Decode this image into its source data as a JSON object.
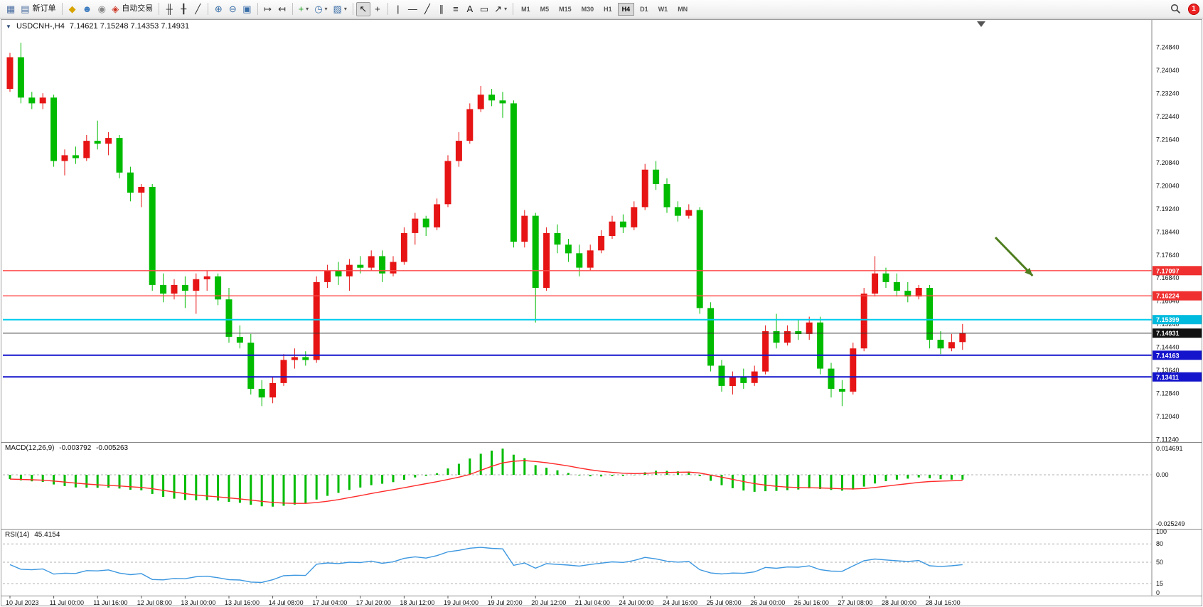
{
  "toolbar": {
    "groups": [
      [
        {
          "name": "new-chart-button",
          "glyph": "▦",
          "color": "#4a6da0"
        },
        {
          "name": "new-order-button",
          "glyph": "▤",
          "color": "#4a6da0",
          "label": "新订单"
        }
      ],
      [
        {
          "name": "profiles-button",
          "glyph": "◆",
          "color": "#d8a400"
        },
        {
          "name": "community-button",
          "glyph": "☻",
          "color": "#3a7abf"
        },
        {
          "name": "market-button",
          "glyph": "◉",
          "color": "#888888"
        },
        {
          "name": "autotrading-button",
          "glyph": "◈",
          "color": "#cc3322",
          "label": "自动交易"
        }
      ],
      [
        {
          "name": "bar-chart-button",
          "glyph": "╫",
          "color": "#333333"
        },
        {
          "name": "candle-chart-button",
          "glyph": "╂",
          "color": "#333333"
        },
        {
          "name": "line-chart-button",
          "glyph": "╱",
          "color": "#333333"
        }
      ],
      [
        {
          "name": "zoom-in-button",
          "glyph": "⊕",
          "color": "#3a6ea8"
        },
        {
          "name": "zoom-out-button",
          "glyph": "⊖",
          "color": "#3a6ea8"
        },
        {
          "name": "tile-windows-button",
          "glyph": "▣",
          "color": "#3a6ea8"
        }
      ],
      [
        {
          "name": "auto-scroll-button",
          "glyph": "↦",
          "color": "#333333"
        },
        {
          "name": "chart-shift-button",
          "glyph": "↤",
          "color": "#333333"
        }
      ],
      [
        {
          "name": "indicators-button",
          "glyph": "+",
          "color": "#1a9a1a",
          "caret": true
        },
        {
          "name": "periods-button",
          "glyph": "◷",
          "color": "#3a6ea8",
          "caret": true
        },
        {
          "name": "templates-button",
          "glyph": "▨",
          "color": "#3a6ea8",
          "caret": true
        }
      ],
      [
        {
          "name": "cursor-button",
          "glyph": "↖",
          "color": "#222222",
          "active": true
        },
        {
          "name": "crosshair-button",
          "glyph": "+",
          "color": "#222222"
        }
      ],
      [
        {
          "name": "vertical-line-tool-button",
          "glyph": "|",
          "color": "#222222"
        },
        {
          "name": "horizontal-line-tool-button",
          "glyph": "—",
          "color": "#222222"
        },
        {
          "name": "trendline-tool-button",
          "glyph": "╱",
          "color": "#222222"
        },
        {
          "name": "channel-tool-button",
          "glyph": "∥",
          "color": "#222222"
        },
        {
          "name": "fibonacci-tool-button",
          "glyph": "≡",
          "color": "#222222"
        },
        {
          "name": "text-tool-button",
          "glyph": "A",
          "color": "#222222"
        },
        {
          "name": "label-tool-button",
          "glyph": "▭",
          "color": "#222222"
        },
        {
          "name": "arrows-tool-button",
          "glyph": "↗",
          "color": "#222222",
          "caret": true
        }
      ]
    ],
    "timeframes": {
      "items": [
        "M1",
        "M5",
        "M15",
        "M30",
        "H1",
        "H4",
        "D1",
        "W1",
        "MN"
      ],
      "active": "H4"
    },
    "notification_count": "1"
  },
  "chart": {
    "symbol_title": "USDCNH-,H4",
    "ohlc_text": "7.14621 7.15248 7.14353 7.14931",
    "price_axis_labels": [
      "7.24840",
      "7.24040",
      "7.23240",
      "7.22440",
      "7.21640",
      "7.20840",
      "7.20040",
      "7.19240",
      "7.18440",
      "7.17640",
      "7.16840",
      "7.16040",
      "7.15240",
      "7.14440",
      "7.13640",
      "7.12840",
      "7.12040",
      "7.11240"
    ],
    "levels": [
      {
        "name": "resistance-line-1",
        "price": 7.17097,
        "label": "7.17097",
        "color": "#ff4a4a",
        "tag": "#f03030",
        "width": 1.4
      },
      {
        "name": "resistance-line-2",
        "price": 7.16224,
        "label": "7.16224",
        "color": "#ff4a4a",
        "tag": "#f03030",
        "width": 1.4
      },
      {
        "name": "support-line-cyan",
        "price": 7.15399,
        "label": "7.15399",
        "color": "#00ccee",
        "tag": "#00bbdd",
        "width": 2
      },
      {
        "name": "bid-price-line",
        "price": 7.14931,
        "label": "7.14931",
        "color": "#333333",
        "tag": "#111111",
        "width": 1
      },
      {
        "name": "support-line-blue-1",
        "price": 7.14163,
        "label": "7.14163",
        "color": "#1414cc",
        "tag": "#1414cc",
        "width": 2
      },
      {
        "name": "support-line-blue-2",
        "price": 7.13411,
        "label": "7.13411",
        "color": "#1414cc",
        "tag": "#1414cc",
        "width": 2
      }
    ]
  },
  "macd": {
    "label": "MACD(12,26,9)",
    "value_main": "-0.003792",
    "value_signal": "-0.005263",
    "axis_top": "0.014691",
    "axis_zero": "0.00",
    "axis_bottom": "-0.025249"
  },
  "rsi": {
    "label": "RSI(14)",
    "value": "45.4154",
    "axis_labels": [
      {
        "v": 100,
        "t": "100"
      },
      {
        "v": 80,
        "t": "80"
      },
      {
        "v": 50,
        "t": "50"
      },
      {
        "v": 15,
        "t": "15"
      },
      {
        "v": 0,
        "t": "0"
      }
    ],
    "level_lines": [
      80,
      50,
      15
    ]
  },
  "time_axis": [
    "10 Jul 2023",
    "11 Jul 00:00",
    "11 Jul 16:00",
    "12 Jul 08:00",
    "13 Jul 00:00",
    "13 Jul 16:00",
    "14 Jul 08:00",
    "17 Jul 04:00",
    "17 Jul 20:00",
    "18 Jul 12:00",
    "19 Jul 04:00",
    "19 Jul 20:00",
    "20 Jul 12:00",
    "21 Jul 04:00",
    "24 Jul 00:00",
    "24 Jul 16:00",
    "25 Jul 08:00",
    "26 Jul 00:00",
    "26 Jul 16:00",
    "27 Jul 08:00",
    "28 Jul 00:00",
    "28 Jul 16:00"
  ],
  "chart_data": {
    "type": "candlestick",
    "symbol": "USDCNH",
    "timeframe": "H4",
    "colors": {
      "bull": "#e61414",
      "bear": "#00bb00",
      "macd_hist": "#00bb00",
      "macd_signal": "#ff2a2a",
      "rsi_line": "#3c97e0",
      "arrow": "#4e7d1e"
    },
    "indicators": {
      "macd_params": [
        12,
        26,
        9
      ],
      "rsi_period": 14
    },
    "annotation_arrow": {
      "from": {
        "bar": 90,
        "price": 7.1825
      },
      "to": {
        "bar": 93.4,
        "price": 7.1692
      }
    },
    "candles": [
      [
        7.234,
        7.2465,
        7.233,
        7.245
      ],
      [
        7.245,
        7.25,
        7.229,
        7.231
      ],
      [
        7.231,
        7.233,
        7.227,
        7.229
      ],
      [
        7.229,
        7.2325,
        7.227,
        7.231
      ],
      [
        7.231,
        7.232,
        7.207,
        7.209
      ],
      [
        7.209,
        7.213,
        7.204,
        7.211
      ],
      [
        7.211,
        7.214,
        7.208,
        7.21
      ],
      [
        7.21,
        7.218,
        7.209,
        7.216
      ],
      [
        7.216,
        7.223,
        7.213,
        7.215
      ],
      [
        7.215,
        7.219,
        7.211,
        7.217
      ],
      [
        7.217,
        7.218,
        7.203,
        7.205
      ],
      [
        7.205,
        7.207,
        7.195,
        7.198
      ],
      [
        7.198,
        7.201,
        7.193,
        7.2
      ],
      [
        7.2,
        7.201,
        7.164,
        7.166
      ],
      [
        7.166,
        7.17,
        7.16,
        7.163
      ],
      [
        7.163,
        7.168,
        7.161,
        7.166
      ],
      [
        7.166,
        7.169,
        7.158,
        7.164
      ],
      [
        7.164,
        7.17,
        7.156,
        7.168
      ],
      [
        7.168,
        7.171,
        7.164,
        7.169
      ],
      [
        7.169,
        7.17,
        7.159,
        7.161
      ],
      [
        7.161,
        7.165,
        7.146,
        7.148
      ],
      [
        7.148,
        7.152,
        7.144,
        7.146
      ],
      [
        7.146,
        7.149,
        7.128,
        7.13
      ],
      [
        7.13,
        7.133,
        7.124,
        7.127
      ],
      [
        7.127,
        7.134,
        7.125,
        7.132
      ],
      [
        7.132,
        7.142,
        7.131,
        7.14
      ],
      [
        7.14,
        7.144,
        7.137,
        7.141
      ],
      [
        7.141,
        7.143,
        7.138,
        7.14
      ],
      [
        7.14,
        7.169,
        7.139,
        7.167
      ],
      [
        7.167,
        7.173,
        7.165,
        7.171
      ],
      [
        7.171,
        7.174,
        7.166,
        7.169
      ],
      [
        7.169,
        7.175,
        7.164,
        7.173
      ],
      [
        7.173,
        7.176,
        7.17,
        7.172
      ],
      [
        7.172,
        7.178,
        7.171,
        7.176
      ],
      [
        7.176,
        7.178,
        7.167,
        7.17
      ],
      [
        7.17,
        7.176,
        7.169,
        7.174
      ],
      [
        7.174,
        7.186,
        7.173,
        7.184
      ],
      [
        7.184,
        7.191,
        7.18,
        7.189
      ],
      [
        7.189,
        7.19,
        7.183,
        7.186
      ],
      [
        7.186,
        7.196,
        7.185,
        7.194
      ],
      [
        7.194,
        7.211,
        7.193,
        7.209
      ],
      [
        7.209,
        7.219,
        7.207,
        7.216
      ],
      [
        7.216,
        7.229,
        7.215,
        7.227
      ],
      [
        7.227,
        7.235,
        7.226,
        7.232
      ],
      [
        7.232,
        7.234,
        7.228,
        7.23
      ],
      [
        7.23,
        7.233,
        7.224,
        7.229
      ],
      [
        7.229,
        7.23,
        7.179,
        7.181
      ],
      [
        7.181,
        7.192,
        7.179,
        7.19
      ],
      [
        7.19,
        7.191,
        7.153,
        7.165
      ],
      [
        7.165,
        7.186,
        7.164,
        7.184
      ],
      [
        7.184,
        7.187,
        7.177,
        7.18
      ],
      [
        7.18,
        7.182,
        7.174,
        7.177
      ],
      [
        7.177,
        7.18,
        7.169,
        7.172
      ],
      [
        7.172,
        7.18,
        7.171,
        7.178
      ],
      [
        7.178,
        7.185,
        7.177,
        7.183
      ],
      [
        7.183,
        7.19,
        7.182,
        7.188
      ],
      [
        7.188,
        7.1905,
        7.184,
        7.186
      ],
      [
        7.186,
        7.195,
        7.185,
        7.193
      ],
      [
        7.193,
        7.208,
        7.192,
        7.206
      ],
      [
        7.206,
        7.209,
        7.199,
        7.201
      ],
      [
        7.201,
        7.203,
        7.191,
        7.193
      ],
      [
        7.193,
        7.195,
        7.188,
        7.19
      ],
      [
        7.19,
        7.194,
        7.189,
        7.192
      ],
      [
        7.192,
        7.193,
        7.156,
        7.158
      ],
      [
        7.158,
        7.16,
        7.136,
        7.138
      ],
      [
        7.138,
        7.14,
        7.129,
        7.131
      ],
      [
        7.131,
        7.136,
        7.128,
        7.134
      ],
      [
        7.134,
        7.137,
        7.13,
        7.132
      ],
      [
        7.132,
        7.138,
        7.131,
        7.136
      ],
      [
        7.136,
        7.152,
        7.135,
        7.15
      ],
      [
        7.15,
        7.156,
        7.144,
        7.146
      ],
      [
        7.146,
        7.152,
        7.145,
        7.15
      ],
      [
        7.15,
        7.154,
        7.147,
        7.149
      ],
      [
        7.149,
        7.155,
        7.147,
        7.153
      ],
      [
        7.153,
        7.155,
        7.135,
        7.137
      ],
      [
        7.137,
        7.139,
        7.127,
        7.13
      ],
      [
        7.13,
        7.133,
        7.124,
        7.129
      ],
      [
        7.129,
        7.146,
        7.128,
        7.144
      ],
      [
        7.144,
        7.165,
        7.143,
        7.163
      ],
      [
        7.163,
        7.176,
        7.162,
        7.17
      ],
      [
        7.17,
        7.172,
        7.165,
        7.167
      ],
      [
        7.167,
        7.17,
        7.162,
        7.164
      ],
      [
        7.164,
        7.167,
        7.16,
        7.162
      ],
      [
        7.162,
        7.166,
        7.161,
        7.165
      ],
      [
        7.165,
        7.166,
        7.144,
        7.147
      ],
      [
        7.147,
        7.15,
        7.142,
        7.144
      ],
      [
        7.144,
        7.149,
        7.143,
        7.1462
      ],
      [
        7.14621,
        7.15248,
        7.14353,
        7.14931
      ]
    ]
  }
}
